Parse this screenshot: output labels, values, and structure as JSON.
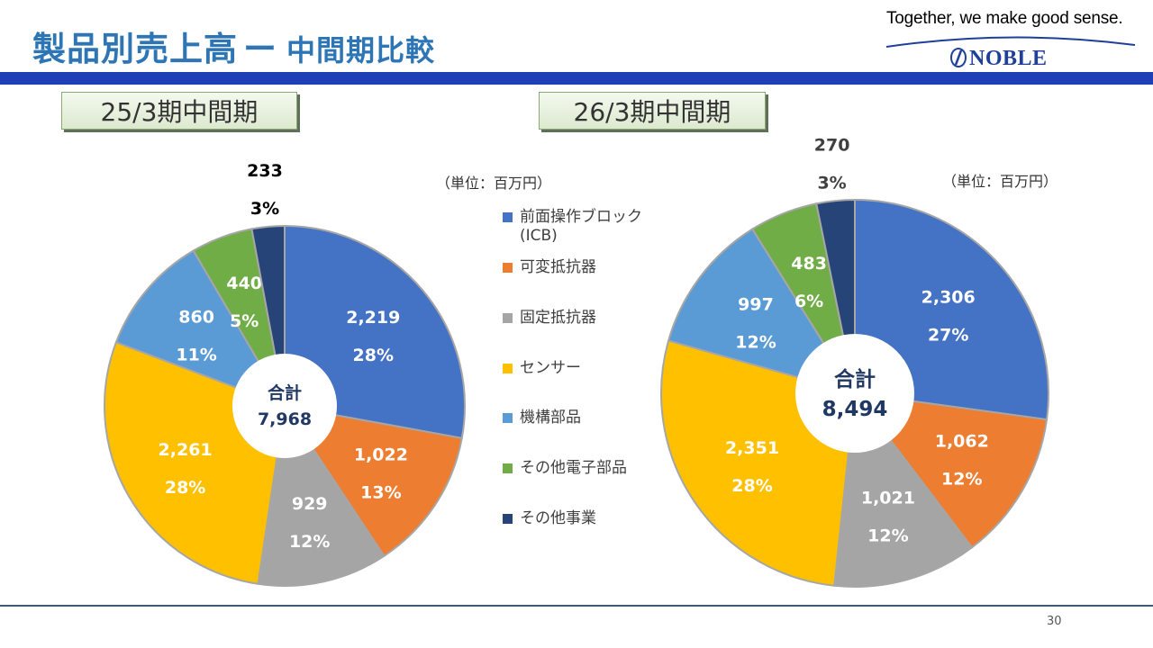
{
  "title": "製品別売上高",
  "title_dash": "ー",
  "subtitle": "中間期比較",
  "slogan": "Together, we make good sense.",
  "logo": "NOBLE",
  "page_number": "30",
  "colors": {
    "title": "#2e75b6",
    "header_bar": "#1f3fb7",
    "series": [
      "#4472c4",
      "#ed7d31",
      "#a5a5a5",
      "#ffc000",
      "#5b9bd5",
      "#70ad47",
      "#264478"
    ]
  },
  "chart_data": [
    {
      "type": "pie",
      "title": "25/3期中間期",
      "unit_label": "（単位：百万円）",
      "total_label": "合計",
      "total_value": "7,968",
      "categories": [
        "前面操作ブロック(ICB)",
        "可変抵抗器",
        "固定抵抗器",
        "センサー",
        "機構部品",
        "その他電子部品",
        "その他事業"
      ],
      "values": [
        2219,
        1022,
        929,
        2261,
        860,
        440,
        233
      ],
      "value_labels": [
        "2,219",
        "1,022",
        "929",
        "2,261",
        "860",
        "440",
        "233"
      ],
      "percent_labels": [
        "28%",
        "13%",
        "12%",
        "28%",
        "11%",
        "5%",
        "3%"
      ]
    },
    {
      "type": "pie",
      "title": "26/3期中間期",
      "unit_label": "（単位：百万円）",
      "total_label": "合計",
      "total_value": "8,494",
      "categories": [
        "前面操作ブロック(ICB)",
        "可変抵抗器",
        "固定抵抗器",
        "センサー",
        "機構部品",
        "その他電子部品",
        "その他事業"
      ],
      "values": [
        2306,
        1062,
        1021,
        2351,
        997,
        483,
        270
      ],
      "value_labels": [
        "2,306",
        "1,062",
        "1,021",
        "2,351",
        "997",
        "483",
        "270"
      ],
      "percent_labels": [
        "27%",
        "12%",
        "12%",
        "28%",
        "12%",
        "6%",
        "3%"
      ]
    }
  ],
  "legend": {
    "items": [
      "前面操作ブロック",
      "(ICB)",
      "可変抵抗器",
      "固定抵抗器",
      "センサー",
      "機構部品",
      "その他電子部品",
      "その他事業"
    ]
  }
}
